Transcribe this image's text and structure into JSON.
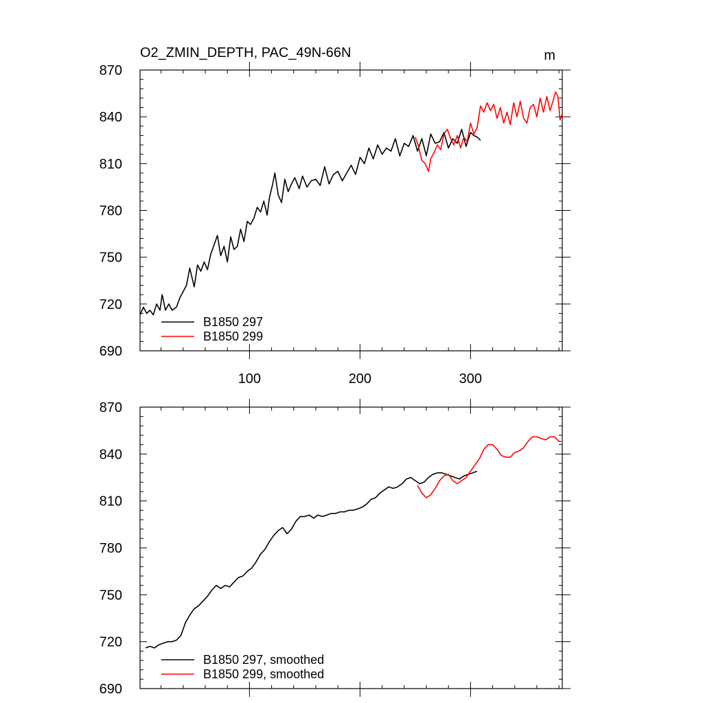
{
  "chart_data": [
    {
      "type": "line",
      "title": "O2_ZMIN_DEPTH, PAC_49N-66N",
      "units": "m",
      "xlim": [
        1,
        383
      ],
      "ylim": [
        690,
        870
      ],
      "xticks": [
        100,
        200,
        300
      ],
      "yticks": [
        690,
        720,
        750,
        780,
        810,
        840,
        870
      ],
      "grid": false,
      "legend_position": "bottom-left",
      "series": [
        {
          "name": "B1850 297",
          "color": "#000000",
          "x": [
            1,
            4,
            7,
            10,
            13,
            16,
            19,
            21,
            24,
            27,
            30,
            34,
            37,
            40,
            43,
            46,
            50,
            53,
            56,
            59,
            62,
            65,
            68,
            71,
            74,
            77,
            80,
            83,
            86,
            89,
            92,
            95,
            98,
            101,
            104,
            107,
            110,
            113,
            116,
            118,
            121,
            123,
            126,
            129,
            132,
            135,
            138,
            141,
            145,
            148,
            152,
            156,
            160,
            164,
            168,
            172,
            176,
            180,
            184,
            188,
            192,
            196,
            200,
            204,
            208,
            212,
            216,
            220,
            224,
            228,
            232,
            236,
            240,
            244,
            248,
            252,
            256,
            260,
            264,
            268,
            272,
            276,
            280,
            284,
            288,
            292,
            296,
            300,
            303,
            306,
            309
          ],
          "y": [
            713,
            718,
            714,
            716,
            713,
            720,
            716,
            726,
            716,
            720,
            716,
            718,
            724,
            728,
            732,
            743,
            731,
            745,
            741,
            747,
            742,
            752,
            758,
            764,
            751,
            757,
            747,
            763,
            755,
            757,
            768,
            760,
            773,
            771,
            775,
            782,
            779,
            786,
            777,
            788,
            797,
            804,
            790,
            785,
            800,
            792,
            797,
            801,
            794,
            802,
            795,
            799,
            800,
            796,
            808,
            797,
            803,
            805,
            799,
            804,
            809,
            803,
            814,
            810,
            820,
            813,
            822,
            816,
            820,
            818,
            826,
            815,
            823,
            821,
            828,
            818,
            826,
            815,
            829,
            823,
            824,
            830,
            820,
            826,
            823,
            832,
            821,
            830,
            828,
            827,
            825
          ]
        },
        {
          "name": "B1850 299",
          "color": "#ff0000",
          "x": [
            250,
            253,
            256,
            259,
            262,
            264,
            267,
            270,
            273,
            276,
            279,
            282,
            285,
            288,
            291,
            294,
            297,
            300,
            303,
            306,
            309,
            312,
            315,
            318,
            321,
            324,
            327,
            330,
            333,
            336,
            339,
            342,
            345,
            348,
            351,
            354,
            357,
            360,
            363,
            366,
            369,
            372,
            375,
            377,
            379,
            381,
            383
          ],
          "y": [
            827,
            821,
            812,
            810,
            805,
            813,
            817,
            822,
            819,
            829,
            832,
            826,
            822,
            828,
            820,
            827,
            824,
            836,
            829,
            833,
            847,
            843,
            849,
            844,
            848,
            839,
            846,
            836,
            843,
            835,
            849,
            840,
            850,
            839,
            836,
            846,
            848,
            840,
            852,
            843,
            853,
            844,
            851,
            856,
            853,
            838,
            842
          ]
        }
      ]
    },
    {
      "type": "line",
      "xlim": [
        1,
        383
      ],
      "ylim": [
        690,
        870
      ],
      "yticks": [
        690,
        720,
        750,
        780,
        810,
        840,
        870
      ],
      "grid": false,
      "legend_position": "bottom-left",
      "series": [
        {
          "name": "B1850 297, smoothed",
          "color": "#000000",
          "x": [
            6,
            10,
            14,
            18,
            22,
            26,
            30,
            34,
            38,
            42,
            46,
            50,
            54,
            58,
            62,
            66,
            70,
            74,
            78,
            82,
            86,
            90,
            94,
            98,
            102,
            106,
            110,
            114,
            118,
            122,
            126,
            130,
            134,
            138,
            142,
            146,
            150,
            154,
            158,
            162,
            166,
            170,
            174,
            178,
            182,
            186,
            190,
            194,
            198,
            202,
            206,
            210,
            214,
            218,
            222,
            226,
            230,
            234,
            238,
            242,
            246,
            250,
            254,
            258,
            262,
            266,
            270,
            274,
            278,
            282,
            286,
            290,
            294,
            298,
            302,
            306
          ],
          "y": [
            716,
            717,
            716,
            718,
            719,
            720,
            720,
            721,
            724,
            732,
            737,
            741,
            743,
            746,
            749,
            753,
            756,
            754,
            756,
            755,
            758,
            761,
            762,
            765,
            767,
            771,
            776,
            779,
            784,
            788,
            791,
            793,
            789,
            792,
            797,
            800,
            800,
            801,
            799,
            801,
            800,
            801,
            802,
            802,
            803,
            803,
            804,
            804,
            805,
            806,
            808,
            811,
            812,
            815,
            817,
            819,
            818,
            819,
            821,
            824,
            825,
            823,
            821,
            822,
            825,
            827,
            828,
            828,
            827,
            826,
            825,
            824,
            826,
            827,
            828,
            829
          ]
        },
        {
          "name": "B1850 299, smoothed",
          "color": "#ff0000",
          "x": [
            252,
            256,
            260,
            264,
            268,
            272,
            276,
            280,
            284,
            288,
            292,
            296,
            300,
            304,
            308,
            312,
            316,
            320,
            324,
            328,
            332,
            336,
            340,
            344,
            348,
            352,
            356,
            360,
            364,
            368,
            372,
            376,
            380,
            382
          ],
          "y": [
            820,
            815,
            812,
            814,
            818,
            823,
            826,
            827,
            823,
            821,
            823,
            825,
            829,
            833,
            837,
            843,
            846,
            846,
            843,
            839,
            838,
            838,
            841,
            842,
            844,
            848,
            851,
            851,
            850,
            849,
            851,
            851,
            848,
            848
          ]
        }
      ]
    }
  ]
}
